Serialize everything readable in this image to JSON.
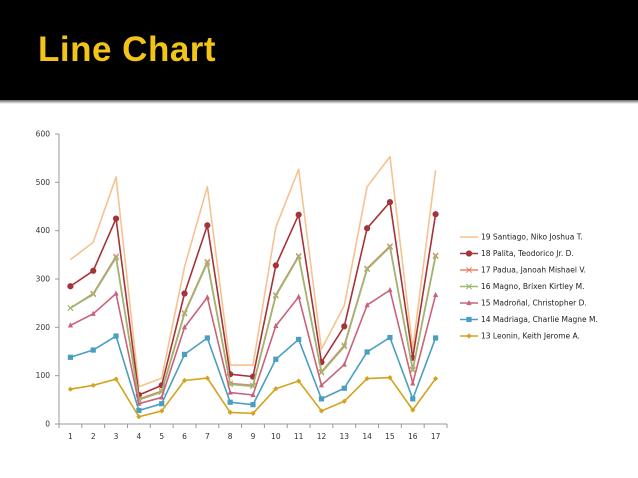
{
  "slide": {
    "title": "Line Chart"
  },
  "chart_data": {
    "type": "line",
    "title": "",
    "xlabel": "",
    "ylabel": "",
    "x": [
      1,
      2,
      3,
      4,
      5,
      6,
      7,
      8,
      9,
      10,
      11,
      12,
      13,
      14,
      15,
      16,
      17
    ],
    "ylim": [
      0,
      600
    ],
    "yticks": [
      0,
      100,
      200,
      300,
      400,
      500,
      600
    ],
    "grid": false,
    "legend_position": "right",
    "series": [
      {
        "name": "19 Santiago,  Niko  Joshua  T.",
        "color": "#f6c28f",
        "marker": "none",
        "values": [
          340,
          376,
          511,
          77,
          95,
          325,
          491,
          122,
          122,
          407,
          527,
          155,
          245,
          491,
          553,
          155,
          525
        ]
      },
      {
        "name": "18 Palita, Teodorico  Jr.  D.",
        "color": "#a5333a",
        "marker": "circle",
        "values": [
          285,
          317,
          425,
          60,
          80,
          270,
          411,
          103,
          98,
          328,
          433,
          128,
          202,
          405,
          459,
          137,
          434
        ]
      },
      {
        "name": "17 Padua, Janoah  Mishael  V.",
        "color": "#e8836a",
        "marker": "x",
        "values": [
          240,
          270,
          347,
          52,
          68,
          230,
          336,
          84,
          80,
          267,
          348,
          108,
          163,
          322,
          368,
          113,
          349
        ]
      },
      {
        "name": "16 Magno, Brixen  Kirtley  M.",
        "color": "#9ab870",
        "marker": "x",
        "values": [
          240,
          268,
          344,
          50,
          66,
          228,
          333,
          82,
          78,
          265,
          346,
          106,
          160,
          320,
          366,
          111,
          347
        ]
      },
      {
        "name": "15 Madroñal, Christopher  D.",
        "color": "#c9637b",
        "marker": "triangle",
        "values": [
          204,
          228,
          270,
          42,
          55,
          200,
          262,
          65,
          60,
          203,
          263,
          80,
          123,
          246,
          277,
          84,
          267
        ]
      },
      {
        "name": "14 Madriaga, Charlie Magne  M.",
        "color": "#4a9fc0",
        "marker": "square",
        "values": [
          138,
          153,
          182,
          28,
          42,
          144,
          178,
          45,
          40,
          134,
          175,
          52,
          74,
          149,
          179,
          52,
          178
        ]
      },
      {
        "name": "13 Leonin, Keith  Jerome  A.",
        "color": "#d4a21e",
        "marker": "diamond",
        "values": [
          72,
          80,
          93,
          15,
          27,
          90,
          95,
          24,
          22,
          73,
          89,
          27,
          47,
          94,
          96,
          29,
          94
        ]
      }
    ]
  }
}
